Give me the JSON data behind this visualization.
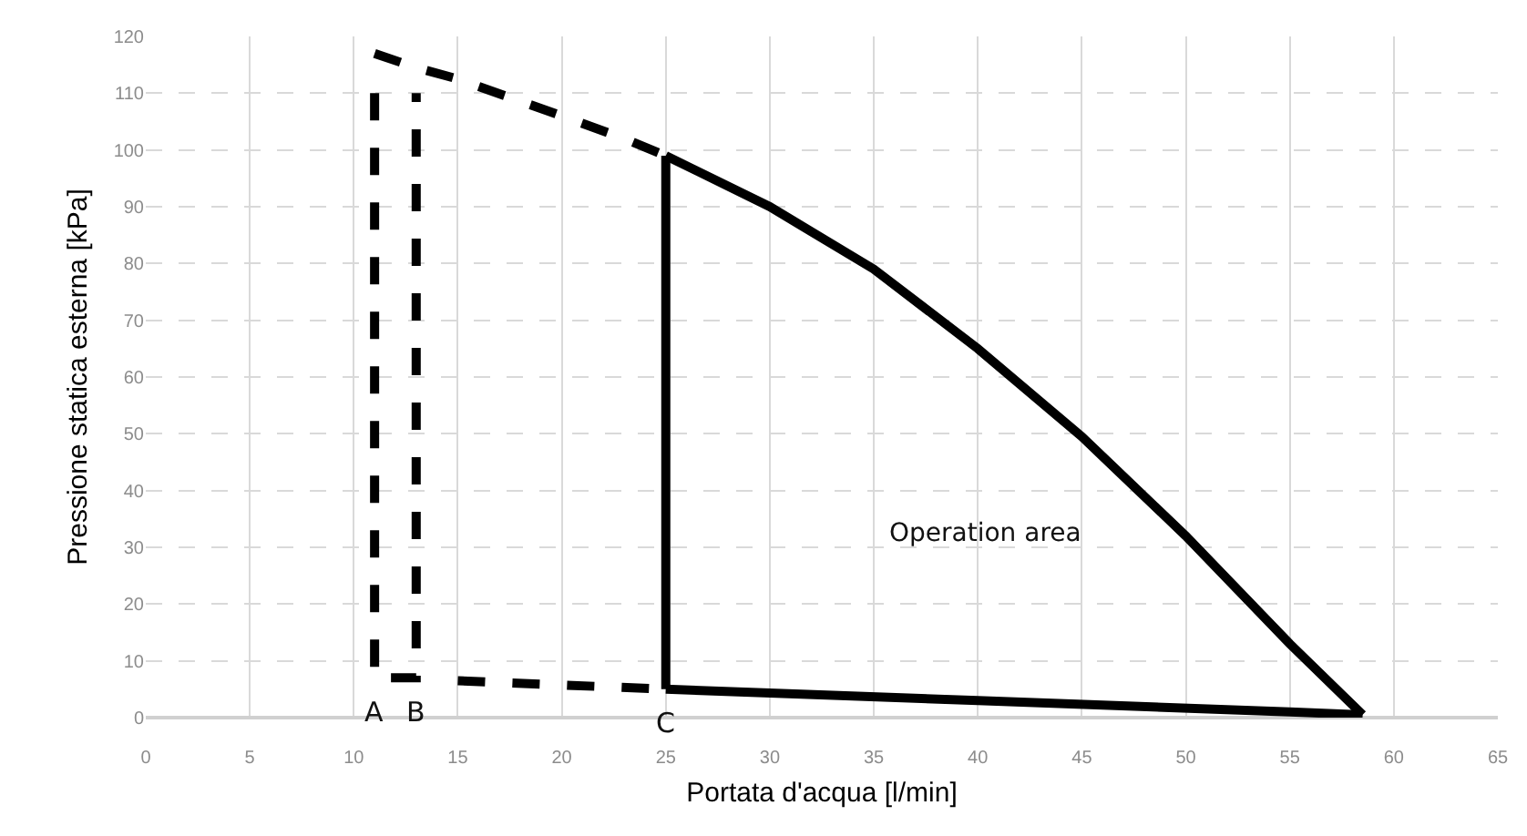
{
  "chart_data": {
    "type": "line",
    "xlabel": "Portata d'acqua [l/min]",
    "ylabel": "Pressione statica esterna [kPa]",
    "xlim": [
      0,
      65
    ],
    "ylim": [
      0,
      120
    ],
    "xticks": [
      0,
      5,
      10,
      15,
      20,
      25,
      30,
      35,
      40,
      45,
      50,
      55,
      60,
      65
    ],
    "yticks": [
      0,
      10,
      20,
      30,
      40,
      50,
      60,
      70,
      80,
      90,
      100,
      110,
      120
    ],
    "grid": true,
    "marker": "none",
    "series": [
      {
        "color": "#000000",
        "line_style": "dashed",
        "x": [
          11,
          13,
          15,
          20,
          23,
          25
        ],
        "values": [
          117,
          114.5,
          112.5,
          106,
          102,
          99
        ]
      },
      {
        "color": "#000000",
        "line_style": "dashed",
        "x": [
          11,
          11,
          13,
          13
        ],
        "values": [
          110,
          7,
          7,
          110
        ]
      },
      {
        "color": "#000000",
        "line_style": "dashed",
        "x": [
          15,
          25
        ],
        "values": [
          6.5,
          5
        ]
      },
      {
        "color": "#000000",
        "line_style": "solid",
        "x": [
          25,
          30,
          35,
          40,
          45,
          50,
          55,
          58.5
        ],
        "values": [
          99,
          90,
          79,
          65,
          49.5,
          32,
          13,
          0.5
        ]
      },
      {
        "color": "#000000",
        "line_style": "solid",
        "x": [
          25,
          40,
          55,
          58.5
        ],
        "values": [
          5,
          3,
          1,
          0.5
        ]
      },
      {
        "color": "#000000",
        "line_style": "solid",
        "x": [
          25,
          25
        ],
        "values": [
          5,
          99
        ]
      }
    ],
    "annotations": [
      {
        "text": "A",
        "x": 11,
        "y": 7
      },
      {
        "text": "B",
        "x": 13,
        "y": 7
      },
      {
        "text": "C",
        "x": 25,
        "y": 5
      },
      "Operation area"
    ]
  }
}
